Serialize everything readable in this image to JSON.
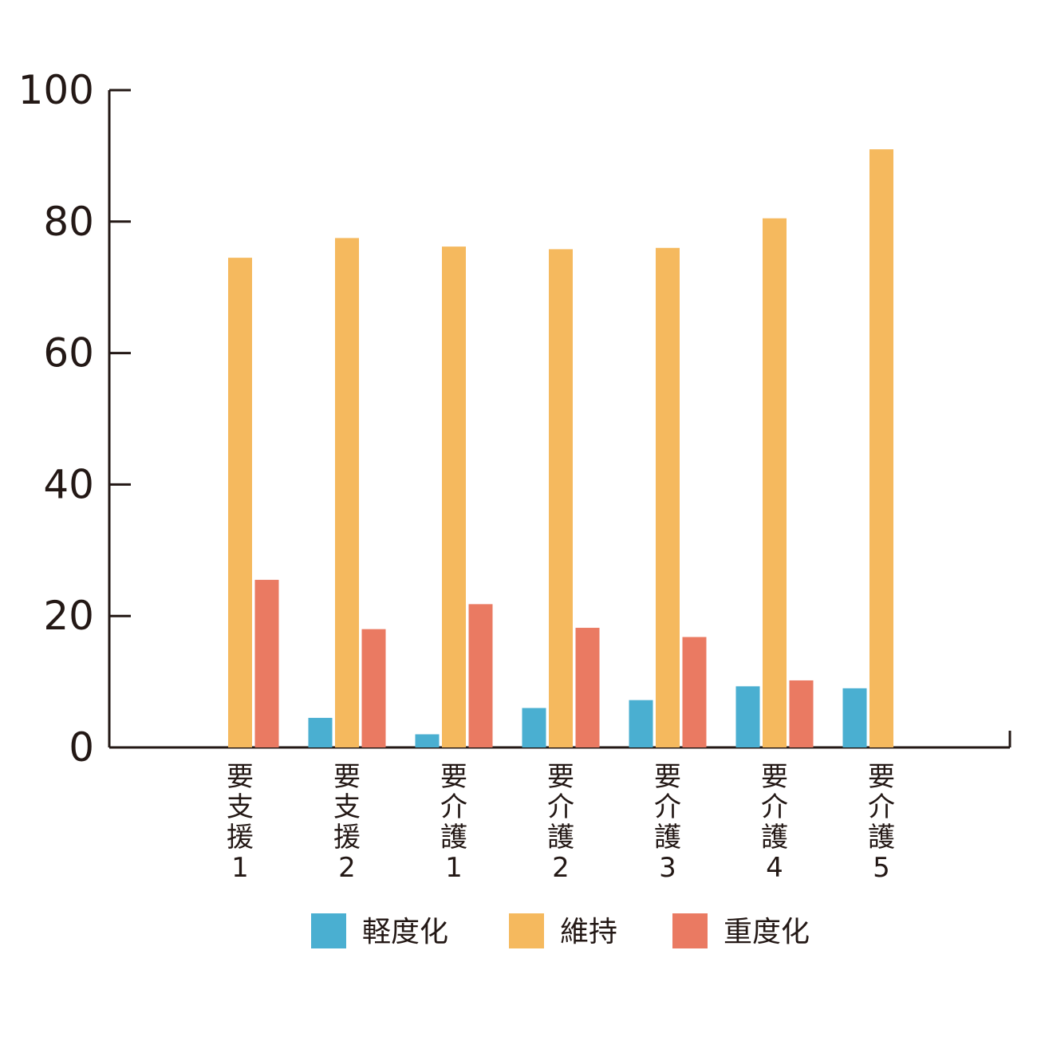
{
  "chart_data": {
    "type": "bar",
    "title": "",
    "xlabel": "",
    "ylabel": "",
    "ylim": [
      0,
      100
    ],
    "yticks": [
      0,
      20,
      40,
      60,
      80,
      100
    ],
    "grid": false,
    "legend_position": "bottom",
    "categories": [
      "要支援1",
      "要支援2",
      "要介護1",
      "要介護2",
      "要介護3",
      "要介護4",
      "要介護5"
    ],
    "series": [
      {
        "name": "軽度化",
        "color": "#4aafd1",
        "values": [
          0,
          4.5,
          2,
          6,
          7.2,
          9.3,
          9
        ]
      },
      {
        "name": "維持",
        "color": "#f5b95e",
        "values": [
          74.5,
          77.5,
          76.2,
          75.8,
          76,
          80.5,
          91
        ]
      },
      {
        "name": "重度化",
        "color": "#ea7a62",
        "values": [
          25.5,
          18,
          21.8,
          18.2,
          16.8,
          10.2,
          0
        ]
      }
    ]
  }
}
